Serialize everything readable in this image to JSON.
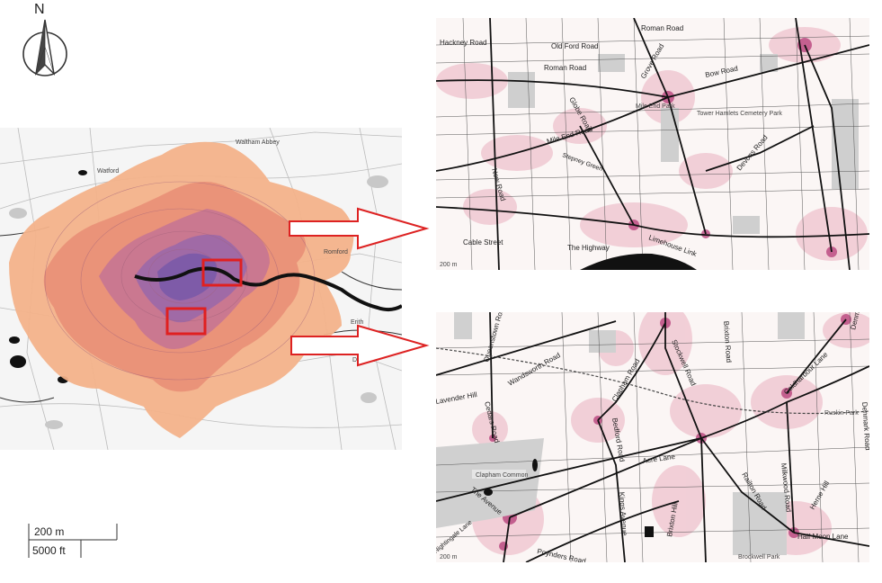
{
  "north_arrow": {
    "label": "N",
    "icon": "north-arrow-icon"
  },
  "overview_map": {
    "labels": [
      "Waltham Abbey",
      "Romford",
      "Erith",
      "Dartford",
      "Watford"
    ],
    "highlight_color": "#e02020",
    "heat_colors": [
      "#f3b28a",
      "#e98f77",
      "#c77592",
      "#9b68a8",
      "#7a5aa8"
    ]
  },
  "inset_top": {
    "roads": [
      "Hackney Road",
      "Old Ford Road",
      "Roman Road",
      "Roman Road",
      "Grove Road",
      "Bow Road",
      "Globe Road",
      "Mile End Park",
      "Tower Hamlets Cemetery Park",
      "Mile End Road",
      "Stepney Green",
      "Devons Road",
      "New Road",
      "Cable Street",
      "The Highway",
      "Limehouse Link"
    ],
    "scale_text": "200 m"
  },
  "inset_bottom": {
    "roads": [
      "Queenstown Road",
      "Wandsworth Road",
      "Clapham Road",
      "Stockwell Road",
      "Brixton Road",
      "Coldharbour Lane",
      "Denmark Hill",
      "Lavender Hill",
      "Cedars Road",
      "Ruskin Park",
      "Bedford Road",
      "Acre Lane",
      "Clapham Common",
      "The Avenue",
      "Kings Avenue",
      "Brixton Hill",
      "Railton Road",
      "Milkwood Road",
      "Herne Hill",
      "Half Moon Lane",
      "Nightingale Lane",
      "Poynders Road",
      "Brockwell Park",
      "Denmark Road"
    ],
    "scale_text": "200 m"
  },
  "scale_bar": {
    "metric": "200 m",
    "imperial": "5000 ft"
  }
}
